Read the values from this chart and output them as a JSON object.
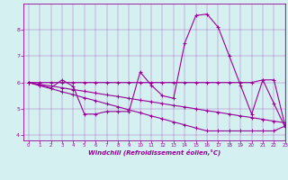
{
  "hours": [
    0,
    1,
    2,
    3,
    4,
    5,
    6,
    7,
    8,
    9,
    10,
    11,
    12,
    13,
    14,
    15,
    16,
    17,
    18,
    19,
    20,
    21,
    22,
    23
  ],
  "line1": [
    6.0,
    5.9,
    5.8,
    6.1,
    5.85,
    4.8,
    4.8,
    4.9,
    4.9,
    4.9,
    6.4,
    5.9,
    5.5,
    5.4,
    7.5,
    8.55,
    8.6,
    8.1,
    7.0,
    5.9,
    4.8,
    6.1,
    5.2,
    4.3
  ],
  "line2": [
    6.0,
    6.0,
    6.0,
    6.0,
    6.0,
    6.0,
    6.0,
    6.0,
    6.0,
    6.0,
    6.0,
    6.0,
    6.0,
    6.0,
    6.0,
    6.0,
    6.0,
    6.0,
    6.0,
    6.0,
    6.0,
    6.1,
    6.1,
    4.35
  ],
  "line3": [
    6.0,
    5.93,
    5.87,
    5.8,
    5.73,
    5.67,
    5.6,
    5.53,
    5.47,
    5.4,
    5.33,
    5.27,
    5.2,
    5.13,
    5.07,
    5.0,
    4.93,
    4.87,
    4.8,
    4.73,
    4.67,
    4.6,
    4.53,
    4.47
  ],
  "line4": [
    6.0,
    5.88,
    5.77,
    5.65,
    5.54,
    5.42,
    5.31,
    5.19,
    5.08,
    4.96,
    4.85,
    4.73,
    4.62,
    4.5,
    4.39,
    4.27,
    4.16,
    4.16,
    4.16,
    4.16,
    4.16,
    4.16,
    4.16,
    4.35
  ],
  "color": "#990099",
  "bg_color": "#d4f0f0",
  "xlabel": "Windchill (Refroidissement éolien,°C)",
  "xlim": [
    -0.5,
    23
  ],
  "ylim": [
    3.8,
    9.0
  ],
  "yticks": [
    4,
    5,
    6,
    7,
    8
  ],
  "xticks": [
    0,
    1,
    2,
    3,
    4,
    5,
    6,
    7,
    8,
    9,
    10,
    11,
    12,
    13,
    14,
    15,
    16,
    17,
    18,
    19,
    20,
    21,
    22,
    23
  ]
}
